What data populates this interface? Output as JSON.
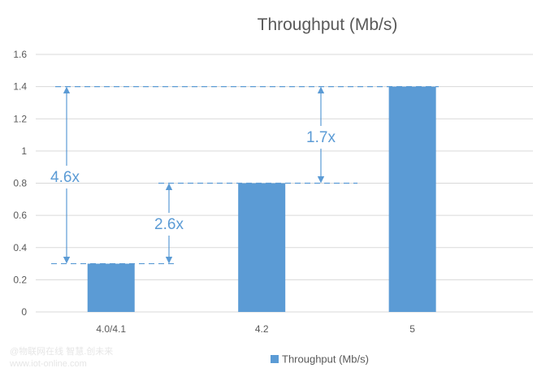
{
  "chart_data": {
    "type": "bar",
    "title": "Throughput (Mb/s)",
    "categories": [
      "4.0/4.1",
      "4.2",
      "5"
    ],
    "series": [
      {
        "name": "Throughput (Mb/s)",
        "values": [
          0.3,
          0.8,
          1.4
        ]
      }
    ],
    "ylim": [
      0,
      1.6
    ],
    "yticks": [
      0,
      0.2,
      0.4,
      0.6,
      0.8,
      1,
      1.2,
      1.4,
      1.6
    ],
    "grid": true,
    "legend": "bottom",
    "colors": {
      "bar": "#5b9bd5",
      "annotation": "#5b9bd5"
    },
    "annotations": [
      {
        "label": "4.6x",
        "from": 0.3,
        "to": 1.4
      },
      {
        "label": "2.6x",
        "from": 0.3,
        "to": 0.8
      },
      {
        "label": "1.7x",
        "from": 0.8,
        "to": 1.4
      }
    ]
  },
  "watermark": {
    "line1": "@物联网在线 智慧.创未来",
    "line2": "www.iot-online.com"
  }
}
